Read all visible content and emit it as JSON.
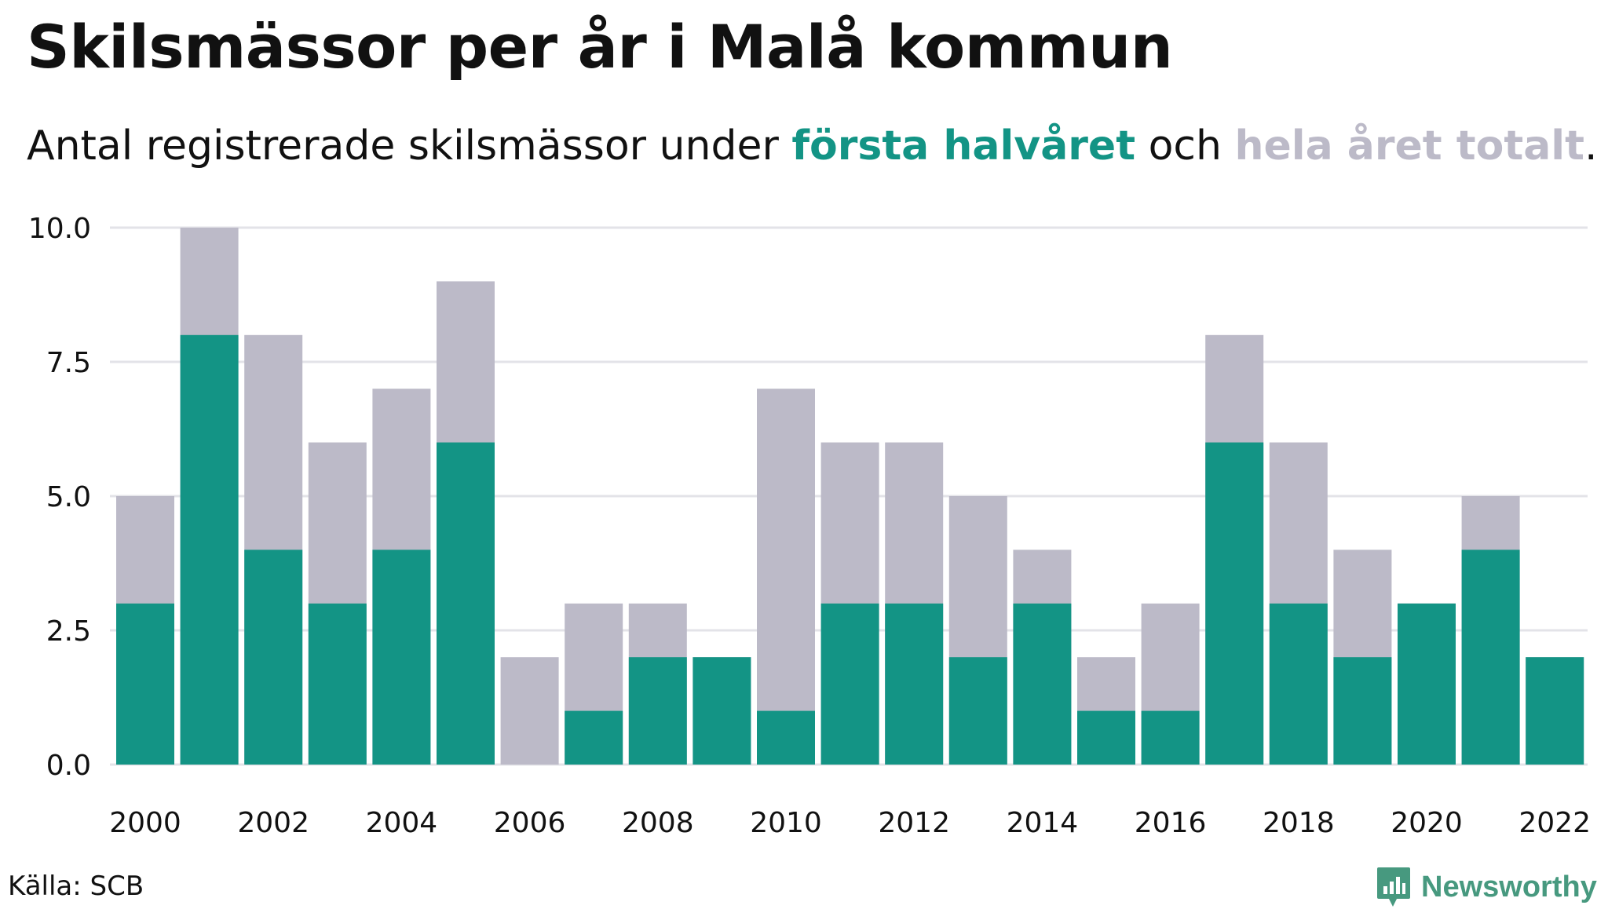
{
  "title": "Skilsmässor per år i Malå kommun",
  "subtitle": {
    "prefix": "Antal registrerade skilsmässor under ",
    "highlight_first": "första halvåret",
    "middle": " och ",
    "highlight_total": "hela året totalt",
    "suffix": "."
  },
  "source": "Källa: SCB",
  "brand": {
    "name": "Newsworthy",
    "icon": "newsworthy-logo-icon"
  },
  "colors": {
    "first_half": "#139485",
    "total": "#bcbac8",
    "grid": "#e3e3e8",
    "axis_text": "#111111"
  },
  "chart_data": {
    "type": "bar",
    "categories": [
      "2000",
      "2001",
      "2002",
      "2003",
      "2004",
      "2005",
      "2006",
      "2007",
      "2008",
      "2009",
      "2010",
      "2011",
      "2012",
      "2013",
      "2014",
      "2015",
      "2016",
      "2017",
      "2018",
      "2019",
      "2020",
      "2021",
      "2022"
    ],
    "series": [
      {
        "name": "hela året totalt",
        "values": [
          5,
          10,
          8,
          6,
          7,
          9,
          2,
          3,
          3,
          2,
          7,
          6,
          6,
          5,
          4,
          2,
          3,
          8,
          6,
          4,
          3,
          5,
          2
        ]
      },
      {
        "name": "första halvåret",
        "values": [
          3,
          8,
          4,
          3,
          4,
          6,
          0,
          1,
          2,
          2,
          1,
          3,
          3,
          2,
          3,
          1,
          1,
          6,
          3,
          2,
          3,
          4,
          2
        ]
      }
    ],
    "x_tick_labels": [
      "2000",
      "2002",
      "2004",
      "2006",
      "2008",
      "2010",
      "2012",
      "2014",
      "2016",
      "2018",
      "2020",
      "2022"
    ],
    "y_tick_labels": [
      "0.0",
      "2.5",
      "5.0",
      "7.5",
      "10.0"
    ],
    "y_ticks": [
      0,
      2.5,
      5,
      7.5,
      10
    ],
    "ylim": [
      0,
      10
    ],
    "grid": true,
    "legend": "inline-in-subtitle"
  }
}
